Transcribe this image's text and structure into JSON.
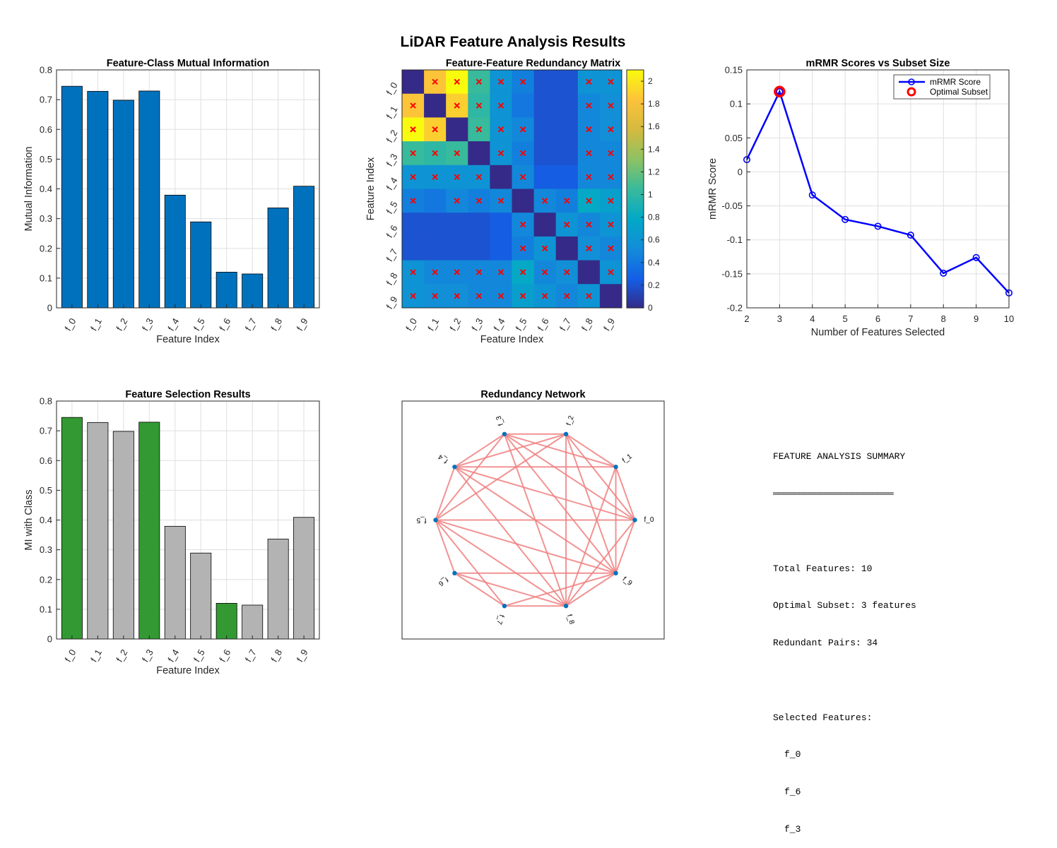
{
  "figure_title": "LiDAR Feature Analysis Results",
  "chart_data": [
    {
      "type": "bar",
      "title": "Feature-Class Mutual Information",
      "xlabel": "Feature Index",
      "ylabel": "Mutual Information",
      "categories": [
        "f_0",
        "f_1",
        "f_2",
        "f_3",
        "f_4",
        "f_5",
        "f_6",
        "f_7",
        "f_8",
        "f_9"
      ],
      "values": [
        0.745,
        0.728,
        0.698,
        0.729,
        0.379,
        0.289,
        0.12,
        0.114,
        0.336,
        0.409
      ],
      "ylim": [
        0,
        0.8
      ],
      "yticks": [
        0,
        0.1,
        0.2,
        0.3,
        0.4,
        0.5,
        0.6,
        0.7,
        0.8
      ],
      "color": "#0072BD",
      "grid": true
    },
    {
      "type": "heatmap",
      "title": "Feature-Feature Redundancy Matrix",
      "xlabel": "Feature Index",
      "ylabel": "Feature Index",
      "labels": [
        "f_0",
        "f_1",
        "f_2",
        "f_3",
        "f_4",
        "f_5",
        "f_6",
        "f_7",
        "f_8",
        "f_9"
      ],
      "values": [
        [
          0.0,
          1.85,
          2.1,
          1.05,
          0.6,
          0.45,
          0.2,
          0.2,
          0.6,
          0.6
        ],
        [
          1.85,
          0.0,
          1.9,
          1.0,
          0.6,
          0.4,
          0.2,
          0.2,
          0.5,
          0.55
        ],
        [
          2.1,
          1.9,
          0.0,
          1.05,
          0.6,
          0.5,
          0.2,
          0.2,
          0.5,
          0.55
        ],
        [
          1.05,
          1.0,
          1.05,
          0.0,
          0.6,
          0.45,
          0.2,
          0.2,
          0.5,
          0.5
        ],
        [
          0.6,
          0.6,
          0.6,
          0.6,
          0.0,
          0.5,
          0.25,
          0.25,
          0.5,
          0.5
        ],
        [
          0.45,
          0.4,
          0.5,
          0.45,
          0.5,
          0.0,
          0.5,
          0.45,
          0.8,
          0.7
        ],
        [
          0.2,
          0.2,
          0.2,
          0.2,
          0.25,
          0.5,
          0.0,
          0.6,
          0.5,
          0.6
        ],
        [
          0.2,
          0.2,
          0.2,
          0.2,
          0.25,
          0.45,
          0.6,
          0.0,
          0.55,
          0.5
        ],
        [
          0.6,
          0.5,
          0.5,
          0.5,
          0.5,
          0.8,
          0.5,
          0.55,
          0.0,
          0.6
        ],
        [
          0.6,
          0.55,
          0.55,
          0.5,
          0.5,
          0.7,
          0.6,
          0.5,
          0.6,
          0.0
        ]
      ],
      "redundant_marks": [
        [
          0,
          1
        ],
        [
          0,
          2
        ],
        [
          0,
          3
        ],
        [
          0,
          4
        ],
        [
          0,
          5
        ],
        [
          0,
          8
        ],
        [
          0,
          9
        ],
        [
          1,
          0
        ],
        [
          1,
          2
        ],
        [
          1,
          3
        ],
        [
          1,
          4
        ],
        [
          1,
          8
        ],
        [
          1,
          9
        ],
        [
          2,
          0
        ],
        [
          2,
          1
        ],
        [
          2,
          3
        ],
        [
          2,
          4
        ],
        [
          2,
          5
        ],
        [
          2,
          8
        ],
        [
          2,
          9
        ],
        [
          3,
          0
        ],
        [
          3,
          1
        ],
        [
          3,
          2
        ],
        [
          3,
          4
        ],
        [
          3,
          5
        ],
        [
          3,
          8
        ],
        [
          3,
          9
        ],
        [
          4,
          0
        ],
        [
          4,
          1
        ],
        [
          4,
          2
        ],
        [
          4,
          3
        ],
        [
          4,
          5
        ],
        [
          4,
          8
        ],
        [
          4,
          9
        ],
        [
          5,
          0
        ],
        [
          5,
          2
        ],
        [
          5,
          3
        ],
        [
          5,
          4
        ],
        [
          5,
          6
        ],
        [
          5,
          7
        ],
        [
          5,
          8
        ],
        [
          5,
          9
        ],
        [
          6,
          5
        ],
        [
          6,
          7
        ],
        [
          6,
          8
        ],
        [
          6,
          9
        ],
        [
          7,
          5
        ],
        [
          7,
          6
        ],
        [
          7,
          8
        ],
        [
          7,
          9
        ],
        [
          8,
          0
        ],
        [
          8,
          1
        ],
        [
          8,
          2
        ],
        [
          8,
          3
        ],
        [
          8,
          4
        ],
        [
          8,
          5
        ],
        [
          8,
          6
        ],
        [
          8,
          7
        ],
        [
          8,
          9
        ],
        [
          9,
          0
        ],
        [
          9,
          1
        ],
        [
          9,
          2
        ],
        [
          9,
          3
        ],
        [
          9,
          4
        ],
        [
          9,
          5
        ],
        [
          9,
          6
        ],
        [
          9,
          7
        ],
        [
          9,
          8
        ]
      ],
      "mark_color": "#ff0000",
      "colorbar_ticks": [
        0,
        0.2,
        0.4,
        0.6,
        0.8,
        1,
        1.2,
        1.4,
        1.6,
        1.8,
        2
      ],
      "clim": [
        0,
        2.1
      ],
      "colormap": "parula"
    },
    {
      "type": "line",
      "title": "mRMR Scores vs Subset Size",
      "xlabel": "Number of Features Selected",
      "ylabel": "mRMR Score",
      "x": [
        2,
        3,
        4,
        5,
        6,
        7,
        8,
        9,
        10
      ],
      "series": [
        {
          "name": "mRMR Score",
          "values": [
            0.018,
            0.118,
            -0.034,
            -0.07,
            -0.08,
            -0.093,
            -0.149,
            -0.126,
            -0.178
          ],
          "color": "#0000ff"
        }
      ],
      "highlight": {
        "name": "Optimal Subset",
        "x": 3,
        "y": 0.118,
        "color": "#ff0000"
      },
      "xlim": [
        2,
        10
      ],
      "ylim": [
        -0.2,
        0.15
      ],
      "xticks": [
        2,
        3,
        4,
        5,
        6,
        7,
        8,
        9,
        10
      ],
      "yticks": [
        0.15,
        0.1,
        0.05,
        0,
        -0.05,
        -0.1,
        -0.15,
        -0.2
      ],
      "legend": "top-right",
      "grid": true
    },
    {
      "type": "bar",
      "title": "Feature Selection Results",
      "xlabel": "Feature Index",
      "ylabel": "MI with Class",
      "categories": [
        "f_0",
        "f_1",
        "f_2",
        "f_3",
        "f_4",
        "f_5",
        "f_6",
        "f_7",
        "f_8",
        "f_9"
      ],
      "values": [
        0.745,
        0.728,
        0.698,
        0.729,
        0.379,
        0.289,
        0.12,
        0.114,
        0.336,
        0.409
      ],
      "selected": [
        true,
        false,
        false,
        true,
        false,
        false,
        true,
        false,
        false,
        false
      ],
      "selected_color": "#339933",
      "other_color": "#b3b3b3",
      "ylim": [
        0,
        0.8
      ],
      "yticks": [
        0,
        0.1,
        0.2,
        0.3,
        0.4,
        0.5,
        0.6,
        0.7,
        0.8
      ],
      "grid": true
    },
    {
      "type": "network",
      "title": "Redundancy Network",
      "nodes": [
        "f_0",
        "f_1",
        "f_2",
        "f_3",
        "f_4",
        "f_5",
        "f_6",
        "f_7",
        "f_8",
        "f_9"
      ],
      "edges": [
        [
          0,
          1
        ],
        [
          0,
          2
        ],
        [
          0,
          3
        ],
        [
          0,
          4
        ],
        [
          0,
          5
        ],
        [
          0,
          8
        ],
        [
          0,
          9
        ],
        [
          1,
          2
        ],
        [
          1,
          3
        ],
        [
          1,
          4
        ],
        [
          1,
          8
        ],
        [
          1,
          9
        ],
        [
          2,
          3
        ],
        [
          2,
          4
        ],
        [
          2,
          5
        ],
        [
          2,
          8
        ],
        [
          2,
          9
        ],
        [
          3,
          4
        ],
        [
          3,
          5
        ],
        [
          3,
          8
        ],
        [
          3,
          9
        ],
        [
          4,
          5
        ],
        [
          4,
          8
        ],
        [
          4,
          9
        ],
        [
          5,
          6
        ],
        [
          5,
          7
        ],
        [
          5,
          8
        ],
        [
          5,
          9
        ],
        [
          6,
          7
        ],
        [
          6,
          8
        ],
        [
          6,
          9
        ],
        [
          7,
          8
        ],
        [
          7,
          9
        ],
        [
          8,
          9
        ]
      ],
      "edge_color": "#f08080",
      "node_color": "#0072BD"
    }
  ],
  "summary": {
    "title": "FEATURE ANALYSIS SUMMARY",
    "underline": "═══════════════════════",
    "total_features": "Total Features: 10",
    "optimal_subset": "Optimal Subset: 3 features",
    "redundant_pairs": "Redundant Pairs: 34",
    "selected_header": "Selected Features:",
    "selected": [
      "f_0",
      "f_6",
      "f_3"
    ]
  }
}
